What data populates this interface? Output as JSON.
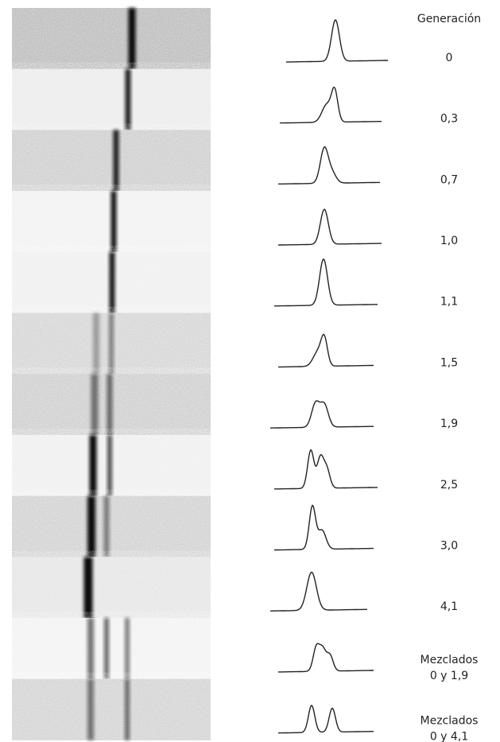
{
  "header": "Generación",
  "rows": [
    {
      "lines": [
        "0"
      ]
    },
    {
      "lines": [
        "0,3"
      ]
    },
    {
      "lines": [
        "0,7"
      ]
    },
    {
      "lines": [
        "1,0"
      ]
    },
    {
      "lines": [
        "1,1"
      ]
    },
    {
      "lines": [
        "1,5"
      ]
    },
    {
      "lines": [
        "1,9"
      ]
    },
    {
      "lines": [
        "2,5"
      ]
    },
    {
      "lines": [
        "3,0"
      ]
    },
    {
      "lines": [
        "4,1"
      ]
    },
    {
      "lines": [
        "Mezclados",
        "0 y 1,9"
      ]
    },
    {
      "lines": [
        "Mezclados",
        "0 y 4,1"
      ]
    }
  ]
}
